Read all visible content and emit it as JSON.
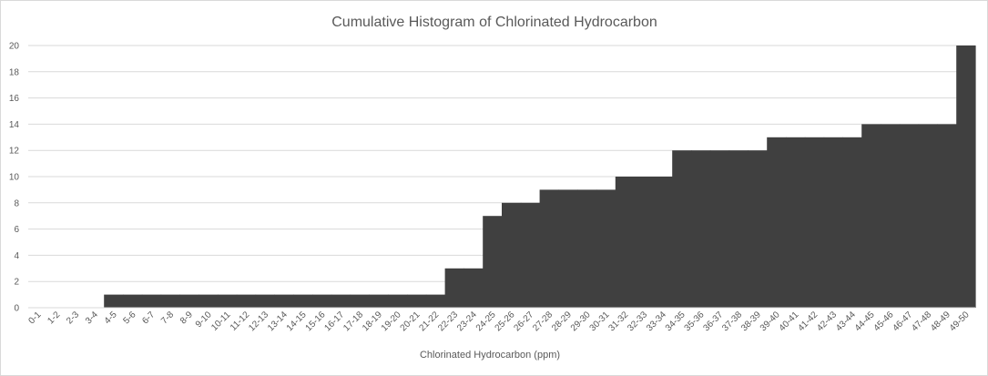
{
  "chart_data": {
    "type": "bar",
    "title": "Cumulative Histogram of Chlorinated Hydrocarbon",
    "xlabel": "Chlorinated Hydrocarbon (ppm)",
    "ylabel": "",
    "ylim": [
      0,
      20
    ],
    "yticks": [
      0,
      2,
      4,
      6,
      8,
      10,
      12,
      14,
      16,
      18,
      20
    ],
    "grid": true,
    "legend": "none",
    "bar_color": "#404040",
    "categories": [
      "0-1",
      "1-2",
      "2-3",
      "3-4",
      "4-5",
      "5-6",
      "6-7",
      "7-8",
      "8-9",
      "9-10",
      "10-11",
      "11-12",
      "12-13",
      "13-14",
      "14-15",
      "15-16",
      "16-17",
      "17-18",
      "18-19",
      "19-20",
      "20-21",
      "21-22",
      "22-23",
      "23-24",
      "24-25",
      "25-26",
      "26-27",
      "27-28",
      "28-29",
      "29-30",
      "30-31",
      "31-32",
      "32-33",
      "33-34",
      "34-35",
      "35-36",
      "36-37",
      "37-38",
      "38-39",
      "39-40",
      "40-41",
      "41-42",
      "42-43",
      "43-44",
      "44-45",
      "45-46",
      "46-47",
      "47-48",
      "48-49",
      "49-50"
    ],
    "values": [
      0,
      0,
      0,
      0,
      1,
      1,
      1,
      1,
      1,
      1,
      1,
      1,
      1,
      1,
      1,
      1,
      1,
      1,
      1,
      1,
      1,
      1,
      3,
      3,
      7,
      8,
      8,
      9,
      9,
      9,
      9,
      10,
      10,
      10,
      12,
      12,
      12,
      12,
      12,
      13,
      13,
      13,
      13,
      13,
      14,
      14,
      14,
      14,
      14,
      20
    ]
  }
}
